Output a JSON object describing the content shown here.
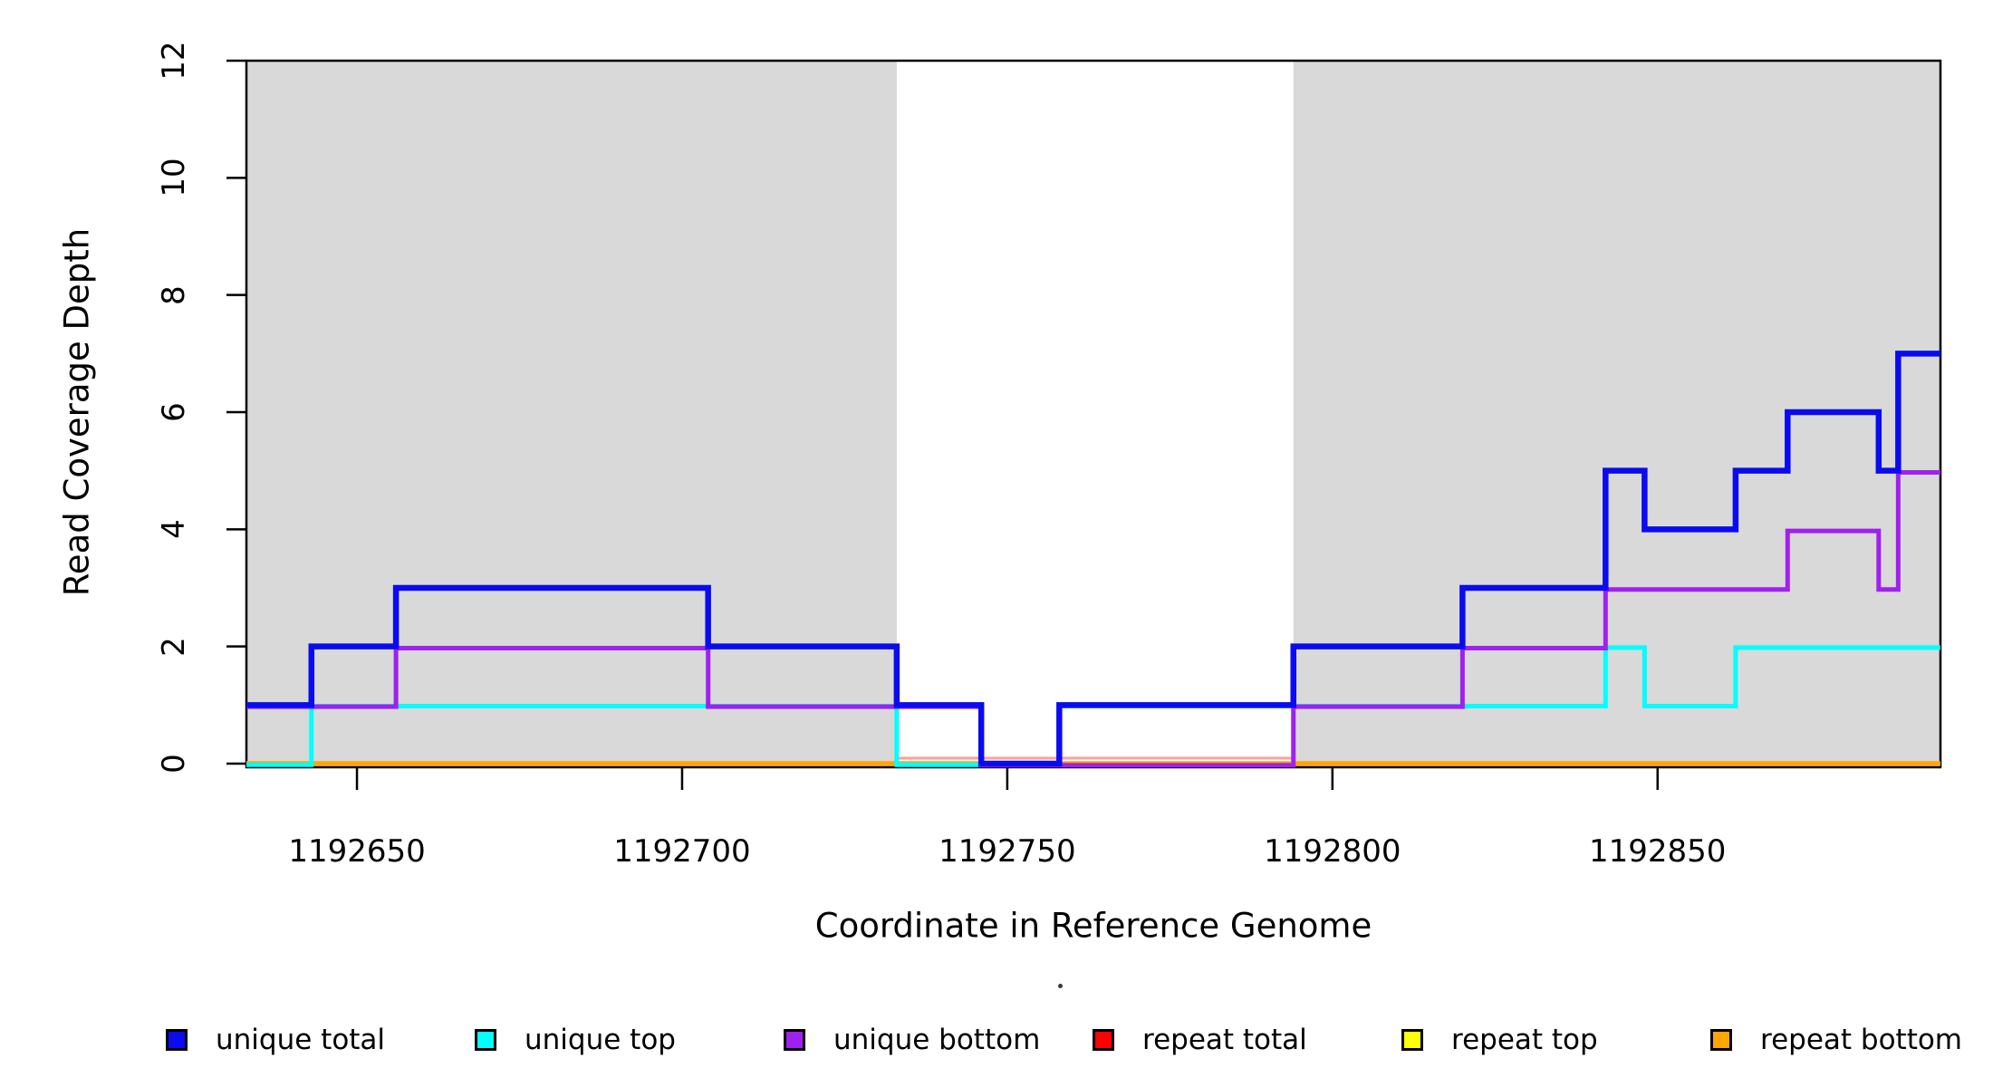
{
  "chart_data": {
    "type": "line",
    "subtype": "step",
    "title": "",
    "xlabel": "Coordinate in Reference Genome",
    "ylabel": "Read Coverage Depth",
    "xlim": [
      1192633,
      1192893.5
    ],
    "ylim": [
      0,
      12
    ],
    "grid": false,
    "x_ticks": [
      "1192650",
      "1192700",
      "1192750",
      "1192800",
      "1192850"
    ],
    "x_tick_values": [
      1192650,
      1192700,
      1192750,
      1192800,
      1192850
    ],
    "y_ticks": [
      "0",
      "2",
      "4",
      "6",
      "8",
      "10",
      "12"
    ],
    "y_tick_values": [
      0,
      2,
      4,
      6,
      8,
      10,
      12
    ],
    "shaded_regions": [
      {
        "x0": 1192633,
        "x1": 1192733,
        "color": "#d9d9d9"
      },
      {
        "x0": 1192794,
        "x1": 1192893.5,
        "color": "#d9d9d9"
      }
    ],
    "series": [
      {
        "name": "repeat top",
        "color": "#ffff00",
        "width": 5,
        "dy": 0,
        "steps": [
          [
            1192633,
            0
          ],
          [
            1192893.5,
            0
          ]
        ]
      },
      {
        "name": "repeat bottom",
        "color": "#ffa500",
        "width": 5.5,
        "dy": 0,
        "steps": [
          [
            1192633,
            0
          ],
          [
            1192893.5,
            0
          ]
        ]
      },
      {
        "name": "repeat total",
        "color": "#ff0000",
        "render_color": "#ff9e9e",
        "width": 3,
        "dy": -6,
        "visible_range": [
          1192733,
          1192794
        ],
        "steps": [
          [
            1192633,
            0
          ],
          [
            1192893.5,
            0
          ]
        ]
      },
      {
        "name": "unique top",
        "color": "#00ffff",
        "width": 5,
        "dy": 1.2,
        "steps": [
          [
            1192633,
            0
          ],
          [
            1192643,
            1
          ],
          [
            1192733,
            0
          ],
          [
            1192758,
            1
          ],
          [
            1192842,
            2
          ],
          [
            1192848,
            1
          ],
          [
            1192862,
            2
          ],
          [
            1192893.5,
            2
          ]
        ]
      },
      {
        "name": "unique bottom",
        "color": "#a020f0",
        "width": 5,
        "dy": 1.8,
        "steps": [
          [
            1192633,
            1
          ],
          [
            1192656,
            2
          ],
          [
            1192704,
            1
          ],
          [
            1192746,
            0
          ],
          [
            1192794,
            1
          ],
          [
            1192820,
            2
          ],
          [
            1192842,
            3
          ],
          [
            1192870,
            4
          ],
          [
            1192884,
            3
          ],
          [
            1192887,
            5
          ],
          [
            1192893.5,
            5
          ]
        ]
      },
      {
        "name": "unique total",
        "color": "#0b0bef",
        "width": 6.5,
        "dy": 0,
        "steps": [
          [
            1192633,
            1
          ],
          [
            1192643,
            2
          ],
          [
            1192656,
            3
          ],
          [
            1192704,
            2
          ],
          [
            1192733,
            1
          ],
          [
            1192746,
            0
          ],
          [
            1192758,
            1
          ],
          [
            1192794,
            2
          ],
          [
            1192820,
            3
          ],
          [
            1192842,
            5
          ],
          [
            1192848,
            4
          ],
          [
            1192862,
            5
          ],
          [
            1192870,
            6
          ],
          [
            1192884,
            5
          ],
          [
            1192887,
            7
          ],
          [
            1192893.5,
            7
          ]
        ]
      }
    ],
    "legend": [
      {
        "label": "unique total",
        "color": "#0b0bef"
      },
      {
        "label": "unique top",
        "color": "#00ffff"
      },
      {
        "label": "unique bottom",
        "color": "#a020f0"
      },
      {
        "label": "repeat total",
        "color": "#ff0000"
      },
      {
        "label": "repeat top",
        "color": "#ffff00"
      },
      {
        "label": "repeat bottom",
        "color": "#ffa500"
      }
    ],
    "legend_position": "bottom"
  }
}
